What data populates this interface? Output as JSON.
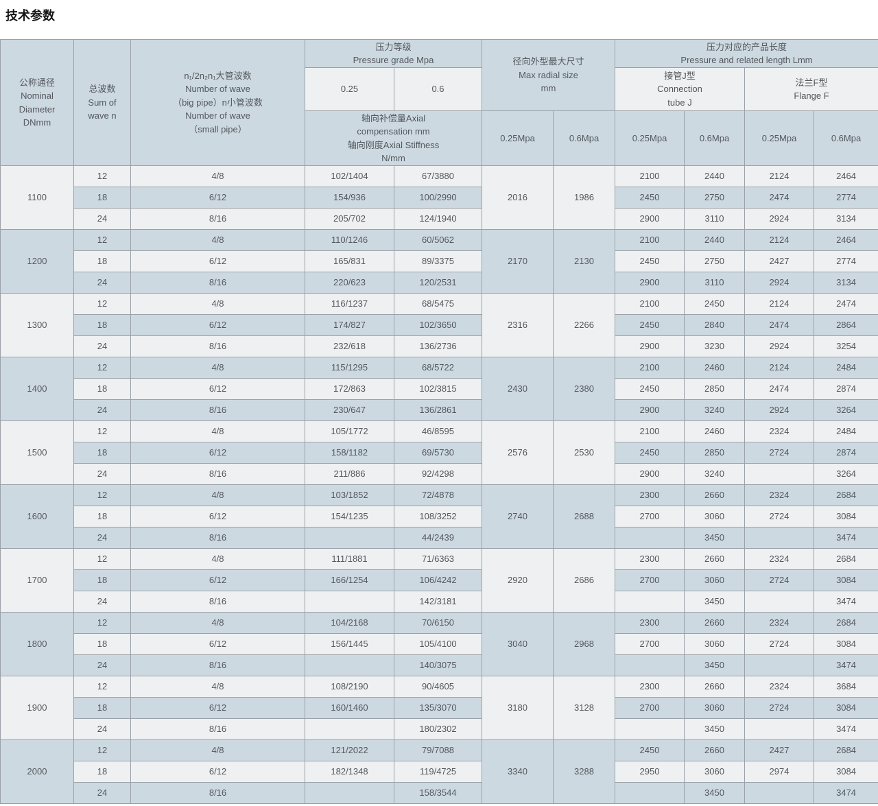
{
  "page": {
    "title": "技术参数"
  },
  "colors": {
    "header_bg": "#cdd9e1",
    "row_light_bg": "#eef0f1",
    "row_dark_bg": "#cdd9e1",
    "border": "#9aa1a8",
    "text": "#54585c"
  },
  "table": {
    "header": {
      "nominal_diameter": "公称通径\nNominal\nDiameter\nDNmm",
      "sum_of_wave": "总波数\nSum of\nwave n",
      "wave_numbers": "n₁/2n₂n₁大管波数\nNumber of wave\n（big pipe）n小管波数\nNumber of wave\n（small pipe）",
      "pressure_grade": "压力等级\nPressure grade Mpa",
      "pressure_025": "0.25",
      "pressure_06": "0.6",
      "axial": "轴向补偿量Axial\ncompensation mm\n轴向刚度Axial Stiffness\nN/mm",
      "max_radial": "径向外型最大尺寸\nMax radial size\nmm",
      "radial_025": "0.25Mpa",
      "radial_06": "0.6Mpa",
      "length": "压力对应的产品长度\nPressure and related length Lmm",
      "tube_j": "接管J型\nConnection\ntube J",
      "flange_f": "法兰F型\nFlange F",
      "j_025": "0.25Mpa",
      "j_06": "0.6Mpa",
      "f_025": "0.25Mpa",
      "f_06": "0.6Mpa"
    },
    "groups": [
      {
        "dn": "1100",
        "radial_025": "2016",
        "radial_06": "1986",
        "rows": [
          {
            "n": "12",
            "waves": "4/8",
            "axial_025": "102/1404",
            "axial_06": "67/3880",
            "j_025": "2100",
            "j_06": "2440",
            "f_025": "2124",
            "f_06": "2464"
          },
          {
            "n": "18",
            "waves": "6/12",
            "axial_025": "154/936",
            "axial_06": "100/2990",
            "j_025": "2450",
            "j_06": "2750",
            "f_025": "2474",
            "f_06": "2774"
          },
          {
            "n": "24",
            "waves": "8/16",
            "axial_025": "205/702",
            "axial_06": "124/1940",
            "j_025": "2900",
            "j_06": "3110",
            "f_025": "2924",
            "f_06": "3134"
          }
        ]
      },
      {
        "dn": "1200",
        "radial_025": "2170",
        "radial_06": "2130",
        "rows": [
          {
            "n": "12",
            "waves": "4/8",
            "axial_025": "110/1246",
            "axial_06": "60/5062",
            "j_025": "2100",
            "j_06": "2440",
            "f_025": "2124",
            "f_06": "2464"
          },
          {
            "n": "18",
            "waves": "6/12",
            "axial_025": "165/831",
            "axial_06": "89/3375",
            "j_025": "2450",
            "j_06": "2750",
            "f_025": "2427",
            "f_06": "2774"
          },
          {
            "n": "24",
            "waves": "8/16",
            "axial_025": "220/623",
            "axial_06": "120/2531",
            "j_025": "2900",
            "j_06": "3110",
            "f_025": "2924",
            "f_06": "3134"
          }
        ]
      },
      {
        "dn": "1300",
        "radial_025": "2316",
        "radial_06": "2266",
        "rows": [
          {
            "n": "12",
            "waves": "4/8",
            "axial_025": "116/1237",
            "axial_06": "68/5475",
            "j_025": "2100",
            "j_06": "2450",
            "f_025": "2124",
            "f_06": "2474"
          },
          {
            "n": "18",
            "waves": "6/12",
            "axial_025": "174/827",
            "axial_06": "102/3650",
            "j_025": "2450",
            "j_06": "2840",
            "f_025": "2474",
            "f_06": "2864"
          },
          {
            "n": "24",
            "waves": "8/16",
            "axial_025": "232/618",
            "axial_06": "136/2736",
            "j_025": "2900",
            "j_06": "3230",
            "f_025": "2924",
            "f_06": "3254"
          }
        ]
      },
      {
        "dn": "1400",
        "radial_025": "2430",
        "radial_06": "2380",
        "rows": [
          {
            "n": "12",
            "waves": "4/8",
            "axial_025": "115/1295",
            "axial_06": "68/5722",
            "j_025": "2100",
            "j_06": "2460",
            "f_025": "2124",
            "f_06": "2484"
          },
          {
            "n": "18",
            "waves": "6/12",
            "axial_025": "172/863",
            "axial_06": "102/3815",
            "j_025": "2450",
            "j_06": "2850",
            "f_025": "2474",
            "f_06": "2874"
          },
          {
            "n": "24",
            "waves": "8/16",
            "axial_025": "230/647",
            "axial_06": "136/2861",
            "j_025": "2900",
            "j_06": "3240",
            "f_025": "2924",
            "f_06": "3264"
          }
        ]
      },
      {
        "dn": "1500",
        "radial_025": "2576",
        "radial_06": "2530",
        "rows": [
          {
            "n": "12",
            "waves": "4/8",
            "axial_025": "105/1772",
            "axial_06": "46/8595",
            "j_025": "2100",
            "j_06": "2460",
            "f_025": "2324",
            "f_06": "2484"
          },
          {
            "n": "18",
            "waves": "6/12",
            "axial_025": "158/1182",
            "axial_06": "69/5730",
            "j_025": "2450",
            "j_06": "2850",
            "f_025": "2724",
            "f_06": "2874"
          },
          {
            "n": "24",
            "waves": "8/16",
            "axial_025": "211/886",
            "axial_06": "92/4298",
            "j_025": "2900",
            "j_06": "3240",
            "f_025": "",
            "f_06": "3264"
          }
        ]
      },
      {
        "dn": "1600",
        "radial_025": "2740",
        "radial_06": "2688",
        "rows": [
          {
            "n": "12",
            "waves": "4/8",
            "axial_025": "103/1852",
            "axial_06": "72/4878",
            "j_025": "2300",
            "j_06": "2660",
            "f_025": "2324",
            "f_06": "2684"
          },
          {
            "n": "18",
            "waves": "6/12",
            "axial_025": "154/1235",
            "axial_06": "108/3252",
            "j_025": "2700",
            "j_06": "3060",
            "f_025": "2724",
            "f_06": "3084"
          },
          {
            "n": "24",
            "waves": "8/16",
            "axial_025": "",
            "axial_06": "44/2439",
            "j_025": "",
            "j_06": "3450",
            "f_025": "",
            "f_06": "3474"
          }
        ]
      },
      {
        "dn": "1700",
        "radial_025": "2920",
        "radial_06": "2686",
        "rows": [
          {
            "n": "12",
            "waves": "4/8",
            "axial_025": "111/1881",
            "axial_06": "71/6363",
            "j_025": "2300",
            "j_06": "2660",
            "f_025": "2324",
            "f_06": "2684"
          },
          {
            "n": "18",
            "waves": "6/12",
            "axial_025": "166/1254",
            "axial_06": "106/4242",
            "j_025": "2700",
            "j_06": "3060",
            "f_025": "2724",
            "f_06": "3084"
          },
          {
            "n": "24",
            "waves": "8/16",
            "axial_025": "",
            "axial_06": "142/3181",
            "j_025": "",
            "j_06": "3450",
            "f_025": "",
            "f_06": "3474"
          }
        ]
      },
      {
        "dn": "1800",
        "radial_025": "3040",
        "radial_06": "2968",
        "rows": [
          {
            "n": "12",
            "waves": "4/8",
            "axial_025": "104/2168",
            "axial_06": "70/6150",
            "j_025": "2300",
            "j_06": "2660",
            "f_025": "2324",
            "f_06": "2684"
          },
          {
            "n": "18",
            "waves": "6/12",
            "axial_025": "156/1445",
            "axial_06": "105/4100",
            "j_025": "2700",
            "j_06": "3060",
            "f_025": "2724",
            "f_06": "3084"
          },
          {
            "n": "24",
            "waves": "8/16",
            "axial_025": "",
            "axial_06": "140/3075",
            "j_025": "",
            "j_06": "3450",
            "f_025": "",
            "f_06": "3474"
          }
        ]
      },
      {
        "dn": "1900",
        "radial_025": "3180",
        "radial_06": "3128",
        "rows": [
          {
            "n": "12",
            "waves": "4/8",
            "axial_025": "108/2190",
            "axial_06": "90/4605",
            "j_025": "2300",
            "j_06": "2660",
            "f_025": "2324",
            "f_06": "3684"
          },
          {
            "n": "18",
            "waves": "6/12",
            "axial_025": "160/1460",
            "axial_06": "135/3070",
            "j_025": "2700",
            "j_06": "3060",
            "f_025": "2724",
            "f_06": "3084"
          },
          {
            "n": "24",
            "waves": "8/16",
            "axial_025": "",
            "axial_06": "180/2302",
            "j_025": "",
            "j_06": "3450",
            "f_025": "",
            "f_06": "3474"
          }
        ]
      },
      {
        "dn": "2000",
        "radial_025": "3340",
        "radial_06": "3288",
        "rows": [
          {
            "n": "12",
            "waves": "4/8",
            "axial_025": "121/2022",
            "axial_06": "79/7088",
            "j_025": "2450",
            "j_06": "2660",
            "f_025": "2427",
            "f_06": "2684"
          },
          {
            "n": "18",
            "waves": "6/12",
            "axial_025": "182/1348",
            "axial_06": "119/4725",
            "j_025": "2950",
            "j_06": "3060",
            "f_025": "2974",
            "f_06": "3084"
          },
          {
            "n": "24",
            "waves": "8/16",
            "axial_025": "",
            "axial_06": "158/3544",
            "j_025": "",
            "j_06": "3450",
            "f_025": "",
            "f_06": "3474"
          }
        ]
      }
    ]
  }
}
